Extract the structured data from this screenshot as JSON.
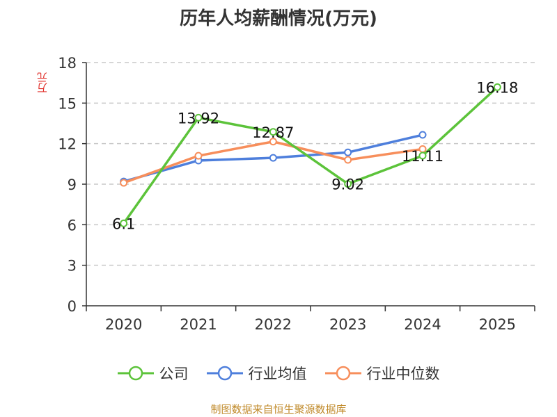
{
  "chart_data": {
    "type": "line",
    "title": "历年人均薪酬情况(万元)",
    "ylabel": "万元",
    "xlabel": "",
    "categories": [
      "2020",
      "2021",
      "2022",
      "2023",
      "2024",
      "2025"
    ],
    "ylim": [
      0,
      18
    ],
    "yticks": [
      0,
      3,
      6,
      9,
      12,
      15,
      18
    ],
    "grid": true,
    "legend_position": "bottom",
    "series": [
      {
        "name": "公司",
        "color": "#5cc33a",
        "values": [
          6.1,
          13.92,
          12.87,
          9.02,
          11.11,
          16.18
        ],
        "labels": [
          "6.1",
          "13.92",
          "12.87",
          "9.02",
          "11.11",
          "16.18"
        ]
      },
      {
        "name": "行业均值",
        "color": "#4e7fdc",
        "values": [
          9.2,
          10.75,
          10.95,
          11.35,
          12.65,
          null
        ]
      },
      {
        "name": "行业中位数",
        "color": "#f78e5b",
        "values": [
          9.1,
          11.1,
          12.15,
          10.8,
          11.6,
          null
        ]
      }
    ]
  },
  "footer": {
    "source": "制图数据来自恒生聚源数据库"
  }
}
